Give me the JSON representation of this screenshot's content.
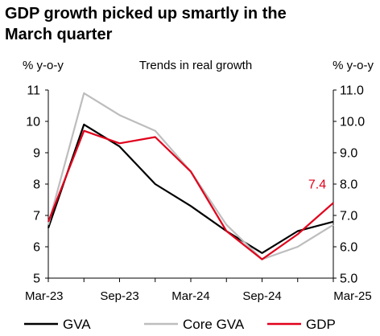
{
  "headline": {
    "line1": "GDP growth picked up smartly in the",
    "line2": "March quarter"
  },
  "chart_data": {
    "type": "line",
    "title": "Trends in real growth",
    "ylabel_left": "% y-o-y",
    "ylabel_right": "% y-o-y",
    "x": [
      "Mar-23",
      "Jun-23",
      "Sep-23",
      "Dec-23",
      "Mar-24",
      "Jun-24",
      "Sep-24",
      "Dec-24",
      "Mar-25"
    ],
    "xtick_labels": [
      "Mar-23",
      "Sep-23",
      "Mar-24",
      "Sep-24",
      "Mar-25"
    ],
    "ylim_left": [
      5,
      11
    ],
    "ylim_right": [
      5.0,
      11.0
    ],
    "yticks_left": [
      "5",
      "6",
      "7",
      "8",
      "9",
      "10",
      "11"
    ],
    "yticks_right": [
      "5.0",
      "6.0",
      "7.0",
      "8.0",
      "9.0",
      "10.0",
      "11.0"
    ],
    "series": [
      {
        "name": "GVA",
        "color": "#000000",
        "values": [
          6.6,
          9.9,
          9.2,
          8.0,
          7.3,
          6.5,
          5.8,
          6.5,
          6.8
        ]
      },
      {
        "name": "Core GVA",
        "color": "#bdbdbd",
        "values": [
          6.7,
          10.9,
          10.2,
          9.7,
          8.4,
          6.7,
          5.6,
          6.0,
          6.7
        ]
      },
      {
        "name": "GDP",
        "color": "#e0001b",
        "values": [
          6.8,
          9.7,
          9.3,
          9.5,
          8.4,
          6.5,
          5.6,
          6.4,
          7.4
        ]
      }
    ],
    "annotations": [
      {
        "series": "GDP",
        "text": "7.4",
        "color": "#e0001b"
      }
    ],
    "legend_position": "bottom",
    "grid": false
  }
}
